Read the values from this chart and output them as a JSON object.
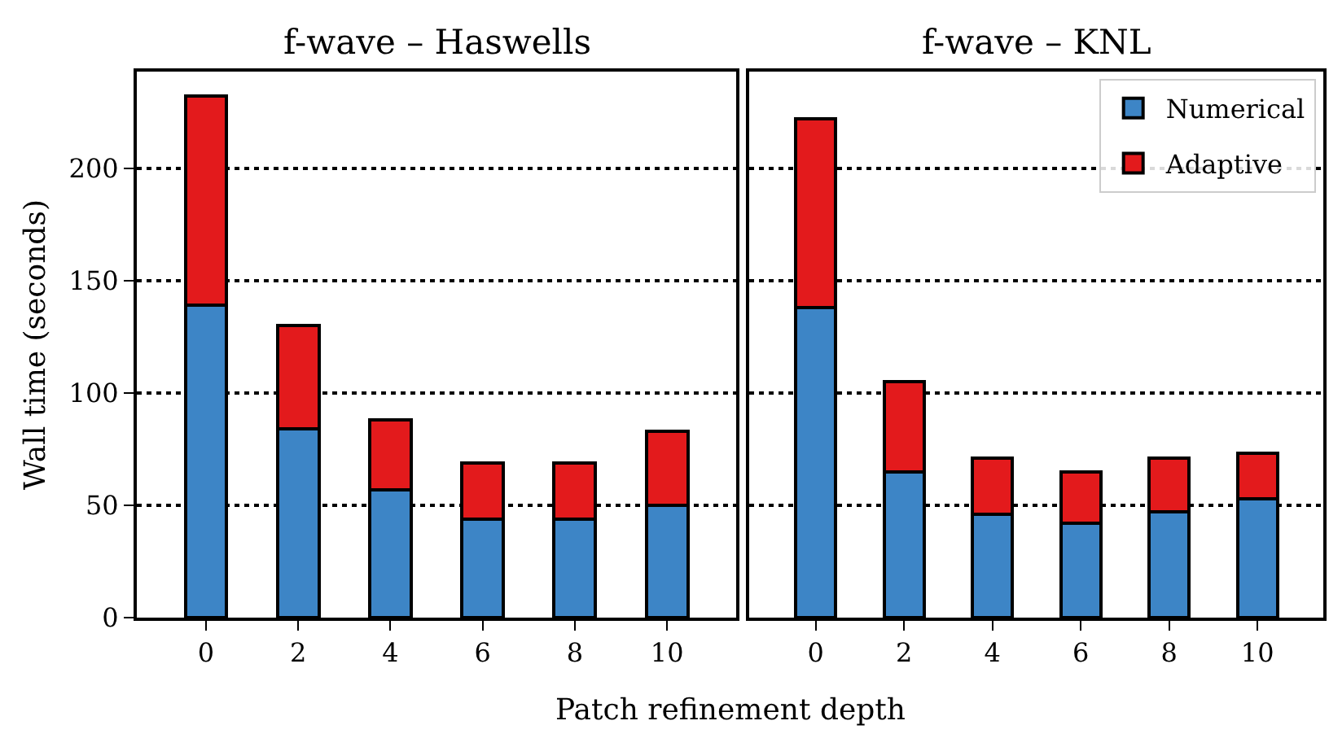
{
  "chart_data": [
    {
      "type": "bar",
      "title": "f-wave – Haswells",
      "xlabel": "Patch refinement depth",
      "ylabel": "Wall time (seconds)",
      "categories": [
        "0",
        "2",
        "4",
        "6",
        "8",
        "10"
      ],
      "stacked": true,
      "series": [
        {
          "color": "#3d85c6",
          "values": [
            139,
            84,
            57,
            44,
            44,
            50
          ]
        },
        {
          "color": "#e31a1c",
          "values": [
            93,
            46,
            31,
            25,
            25,
            33
          ]
        }
      ],
      "ylim": [
        0,
        243
      ],
      "yticks": [
        0,
        50,
        100,
        150,
        200
      ],
      "grid": "y"
    },
    {
      "type": "bar",
      "title": "f-wave – KNL",
      "categories": [
        "0",
        "2",
        "4",
        "6",
        "8",
        "10"
      ],
      "stacked": true,
      "series": [
        {
          "name": "Numerical",
          "color": "#3d85c6",
          "values": [
            138,
            65,
            46,
            42,
            47,
            53
          ]
        },
        {
          "name": "Adaptive",
          "color": "#e31a1c",
          "values": [
            84,
            40,
            25,
            23,
            24,
            20
          ]
        }
      ],
      "ylim": [
        0,
        243
      ],
      "yticks": [
        0,
        50,
        100,
        150,
        200
      ],
      "grid": "y",
      "legend": "top right",
      "tick_labels": "x"
    }
  ]
}
